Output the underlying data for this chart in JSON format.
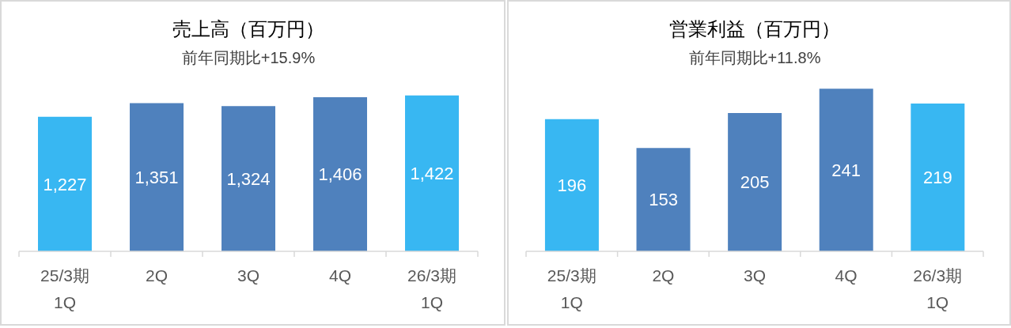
{
  "chart_data": [
    {
      "type": "bar",
      "title": "売上高（百万円）",
      "subtitle": "前年同期比+15.9%",
      "categories": [
        "25/3期\n1Q",
        "2Q",
        "3Q",
        "4Q",
        "26/3期\n1Q"
      ],
      "values": [
        1227,
        1351,
        1324,
        1406,
        1422
      ],
      "value_labels": [
        "1,227",
        "1,351",
        "1,324",
        "1,406",
        "1,422"
      ],
      "colors": [
        "#38b7f2",
        "#4f81bd",
        "#4f81bd",
        "#4f81bd",
        "#38b7f2"
      ],
      "tick_labels": "x"
    },
    {
      "type": "bar",
      "title": "営業利益（百万円）",
      "subtitle": "前年同期比+11.8%",
      "categories": [
        "25/3期\n1Q",
        "2Q",
        "3Q",
        "4Q",
        "26/3期\n1Q"
      ],
      "values": [
        196,
        153,
        205,
        241,
        219
      ],
      "colors": [
        "#38b7f2",
        "#4f81bd",
        "#4f81bd",
        "#4f81bd",
        "#38b7f2"
      ],
      "tick_labels": "x",
      "data_labels": true
    }
  ]
}
